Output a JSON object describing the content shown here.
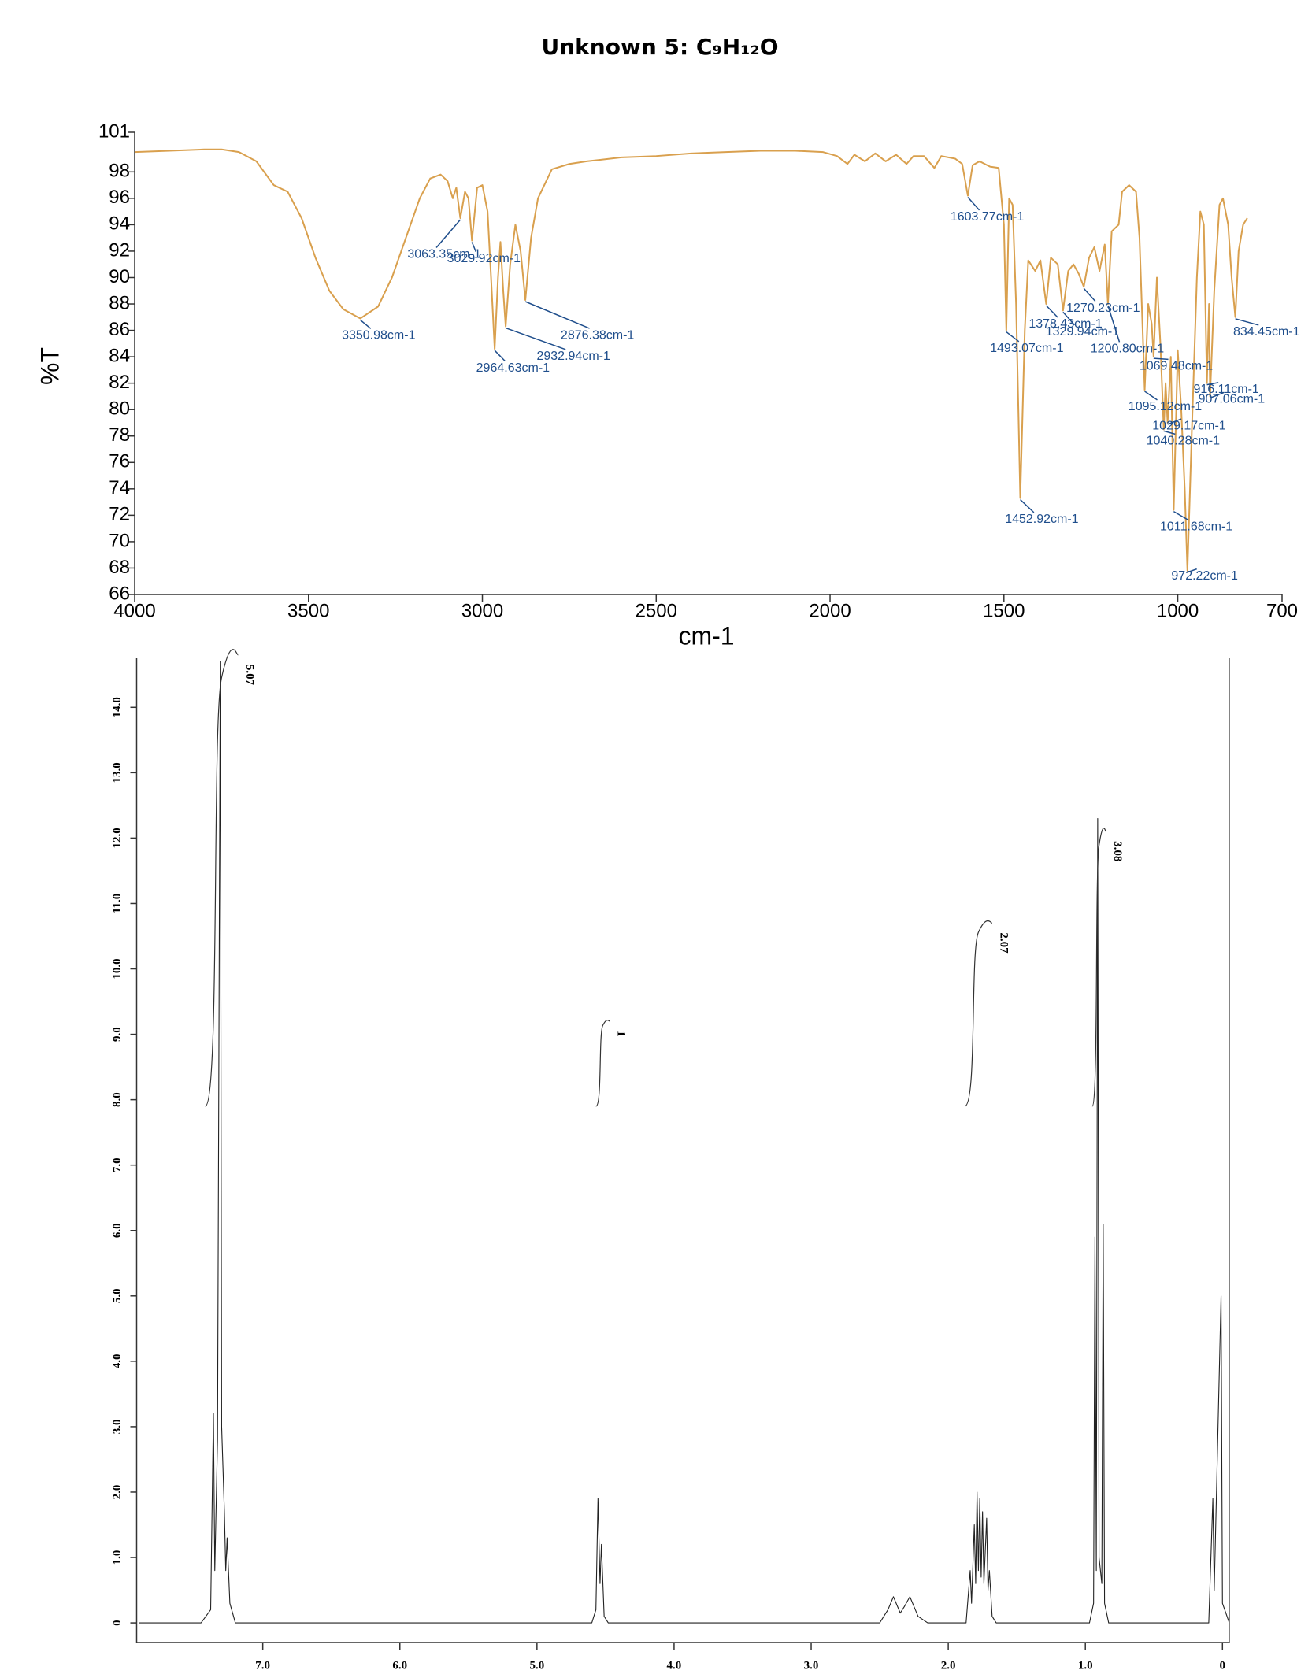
{
  "title": "Unknown 5: C₉H₁₂O",
  "chart_data": [
    {
      "type": "line",
      "xlabel": "cm-1",
      "ylabel": "%T",
      "color": "#d9a04e",
      "xlim": [
        4000,
        700
      ],
      "ylim": [
        66,
        101
      ],
      "xticks": [
        4000,
        3500,
        3000,
        2500,
        2000,
        1500,
        1000,
        700
      ],
      "yticks": [
        101,
        98,
        96,
        94,
        92,
        90,
        88,
        86,
        84,
        82,
        80,
        78,
        76,
        74,
        72,
        70,
        68,
        66
      ],
      "x": [
        4000,
        3900,
        3800,
        3750,
        3700,
        3650,
        3600,
        3560,
        3520,
        3480,
        3440,
        3400,
        3350.98,
        3300,
        3260,
        3220,
        3180,
        3150,
        3120,
        3100,
        3085,
        3075,
        3063.35,
        3050,
        3040,
        3029.92,
        3015,
        3000,
        2985,
        2975,
        2964.63,
        2955,
        2948,
        2940,
        2932.94,
        2920,
        2905,
        2890,
        2876.38,
        2860,
        2840,
        2800,
        2750,
        2700,
        2600,
        2500,
        2400,
        2300,
        2200,
        2100,
        2020,
        1980,
        1950,
        1930,
        1900,
        1870,
        1840,
        1810,
        1780,
        1760,
        1730,
        1700,
        1680,
        1640,
        1620,
        1603.77,
        1590,
        1570,
        1540,
        1515,
        1500,
        1493.07,
        1485,
        1475,
        1465,
        1452.92,
        1440,
        1430,
        1410,
        1395,
        1378.43,
        1365,
        1345,
        1329.94,
        1315,
        1300,
        1285,
        1270.23,
        1255,
        1240,
        1225,
        1210,
        1200.8,
        1190,
        1170,
        1160,
        1140,
        1120,
        1110,
        1095.12,
        1085,
        1075,
        1069.48,
        1060,
        1050,
        1040.28,
        1035,
        1029.17,
        1020,
        1011.68,
        1000,
        990,
        980,
        972.22,
        960,
        945,
        935,
        925,
        916.11,
        910,
        907.06,
        895,
        880,
        870,
        855,
        845,
        834.45,
        825,
        812,
        800
      ],
      "values": [
        99.5,
        99.6,
        99.7,
        99.7,
        99.5,
        98.8,
        97.0,
        96.5,
        94.5,
        91.5,
        89,
        87.6,
        86.9,
        87.8,
        90,
        93,
        96,
        97.5,
        97.8,
        97.3,
        96,
        96.8,
        94.5,
        96.5,
        96,
        92.8,
        96.8,
        97,
        95,
        90,
        84.6,
        90,
        92.7,
        89,
        86.3,
        91,
        94,
        92,
        88.3,
        93,
        96,
        98.2,
        98.6,
        98.8,
        99.1,
        99.2,
        99.4,
        99.5,
        99.6,
        99.6,
        99.5,
        99.2,
        98.6,
        99.3,
        98.8,
        99.4,
        98.8,
        99.3,
        98.6,
        99.2,
        99.2,
        98.3,
        99.2,
        99,
        98.6,
        96.2,
        98.5,
        98.8,
        98.4,
        98.3,
        94,
        86,
        96,
        95.5,
        88,
        73.3,
        86,
        91.3,
        90.5,
        91.3,
        88,
        91.5,
        91,
        87.5,
        90.5,
        91,
        90.3,
        89.3,
        91.5,
        92.3,
        90.5,
        92.5,
        88,
        93.5,
        94,
        96.5,
        97,
        96.5,
        93,
        81.5,
        88,
        86.5,
        84,
        90,
        85,
        78.5,
        82,
        79,
        84,
        72.4,
        84.5,
        80,
        74,
        67.8,
        78,
        90,
        95,
        94,
        82,
        88,
        81,
        89,
        95.5,
        96,
        94,
        90,
        87,
        92,
        94,
        94.5
      ],
      "annotations": [
        {
          "label": "3350.98cm-1",
          "x": 3350.98,
          "y": 86.9
        },
        {
          "label": "3063.35cm-1",
          "x": 3063.35,
          "y": 94.5
        },
        {
          "label": "3029.92cm-1",
          "x": 3029.92,
          "y": 92.8
        },
        {
          "label": "2964.63cm-1",
          "x": 2964.63,
          "y": 84.6
        },
        {
          "label": "2932.94cm-1",
          "x": 2932.94,
          "y": 86.3
        },
        {
          "label": "2876.38cm-1",
          "x": 2876.38,
          "y": 88.3
        },
        {
          "label": "1603.77cm-1",
          "x": 1603.77,
          "y": 96.2
        },
        {
          "label": "1493.07cm-1",
          "x": 1493.07,
          "y": 86
        },
        {
          "label": "1452.92cm-1",
          "x": 1452.92,
          "y": 73.3
        },
        {
          "label": "1378.43cm-1",
          "x": 1378.43,
          "y": 88
        },
        {
          "label": "1329.94cm-1",
          "x": 1329.94,
          "y": 87.5
        },
        {
          "label": "1270.23cm-1",
          "x": 1270.23,
          "y": 89.3
        },
        {
          "label": "1200.80cm-1",
          "x": 1200.8,
          "y": 88
        },
        {
          "label": "1069.48cm-1",
          "x": 1069.48,
          "y": 84
        },
        {
          "label": "1095.12cm-1",
          "x": 1095.12,
          "y": 81.5
        },
        {
          "label": "1029.17cm-1",
          "x": 1029.17,
          "y": 79
        },
        {
          "label": "1040.28cm-1",
          "x": 1040.28,
          "y": 78.5
        },
        {
          "label": "1011.68cm-1",
          "x": 1011.68,
          "y": 72.4
        },
        {
          "label": "972.22cm-1",
          "x": 972.22,
          "y": 67.8
        },
        {
          "label": "916.11cm-1",
          "x": 916.11,
          "y": 82
        },
        {
          "label": "907.06cm-1",
          "x": 907.06,
          "y": 81
        },
        {
          "label": "834.45cm-1",
          "x": 834.45,
          "y": 87
        }
      ]
    },
    {
      "type": "line",
      "color": "#222222",
      "xlim": [
        7.92,
        -0.05
      ],
      "ylim": [
        -0.3,
        14.75
      ],
      "xticks": [
        {
          "value": 7,
          "label": "7.0"
        },
        {
          "value": 6,
          "label": "6.0"
        },
        {
          "value": 5,
          "label": "5.0"
        },
        {
          "value": 4,
          "label": "4.0"
        },
        {
          "value": 3,
          "label": "3.0"
        },
        {
          "value": 2,
          "label": "2.0"
        },
        {
          "value": 1,
          "label": "1.0"
        },
        0
      ],
      "yticks": [
        0,
        {
          "value": 1,
          "label": "1.0"
        },
        {
          "value": 2,
          "label": "2.0"
        },
        {
          "value": 3,
          "label": "3.0"
        },
        {
          "value": 4,
          "label": "4.0"
        },
        {
          "value": 5,
          "label": "5.0"
        },
        {
          "value": 6,
          "label": "6.0"
        },
        {
          "value": 7,
          "label": "7.0"
        },
        {
          "value": 8,
          "label": "8.0"
        },
        {
          "value": 9,
          "label": "9.0"
        },
        {
          "value": 10,
          "label": "10.0"
        },
        {
          "value": 11,
          "label": "11.0"
        },
        {
          "value": 12,
          "label": "12.0"
        },
        {
          "value": 13,
          "label": "13.0"
        },
        {
          "value": 14,
          "label": "14.0"
        }
      ],
      "x": [
        7.9,
        7.45,
        7.38,
        7.36,
        7.35,
        7.33,
        7.31,
        7.3,
        7.28,
        7.27,
        7.26,
        7.24,
        7.2,
        6.5,
        4.6,
        4.57,
        4.555,
        4.54,
        4.53,
        4.51,
        4.48,
        2.5,
        2.44,
        2.4,
        2.35,
        2.32,
        2.28,
        2.22,
        2.15,
        1.87,
        1.84,
        1.83,
        1.81,
        1.8,
        1.79,
        1.78,
        1.77,
        1.76,
        1.75,
        1.74,
        1.72,
        1.71,
        1.7,
        1.68,
        1.65,
        0.97,
        0.94,
        0.93,
        0.92,
        0.91,
        0.9,
        0.88,
        0.87,
        0.86,
        0.83,
        0.1,
        0.07,
        0.06,
        0.01,
        0.0,
        -0.05
      ],
      "values": [
        0,
        0,
        0.2,
        3.2,
        0.8,
        2.8,
        14.7,
        3.0,
        1.7,
        0.8,
        1.3,
        0.3,
        0,
        0,
        0,
        0.2,
        1.9,
        0.6,
        1.2,
        0.1,
        0,
        0,
        0.2,
        0.4,
        0.15,
        0.25,
        0.4,
        0.1,
        0,
        0,
        0.8,
        0.3,
        1.5,
        0.6,
        2.0,
        0.8,
        1.9,
        0.7,
        1.7,
        0.6,
        1.6,
        0.5,
        0.8,
        0.1,
        0,
        0,
        0.3,
        5.9,
        0.8,
        12.3,
        1.0,
        0.6,
        6.1,
        0.3,
        0,
        0,
        1.9,
        0.5,
        5.0,
        0.3,
        0
      ],
      "integrals": [
        {
          "value": 5.07,
          "x": [
            7.42,
            7.18
          ],
          "y": [
            7.9,
            14.8
          ]
        },
        {
          "value": 1,
          "x": [
            4.57,
            4.47
          ],
          "y": [
            7.9,
            9.2
          ]
        },
        {
          "value": 2.07,
          "x": [
            1.88,
            1.68
          ],
          "y": [
            7.9,
            10.7
          ]
        },
        {
          "value": 3.08,
          "x": [
            0.95,
            0.85
          ],
          "y": [
            7.9,
            12.1
          ]
        }
      ]
    }
  ]
}
